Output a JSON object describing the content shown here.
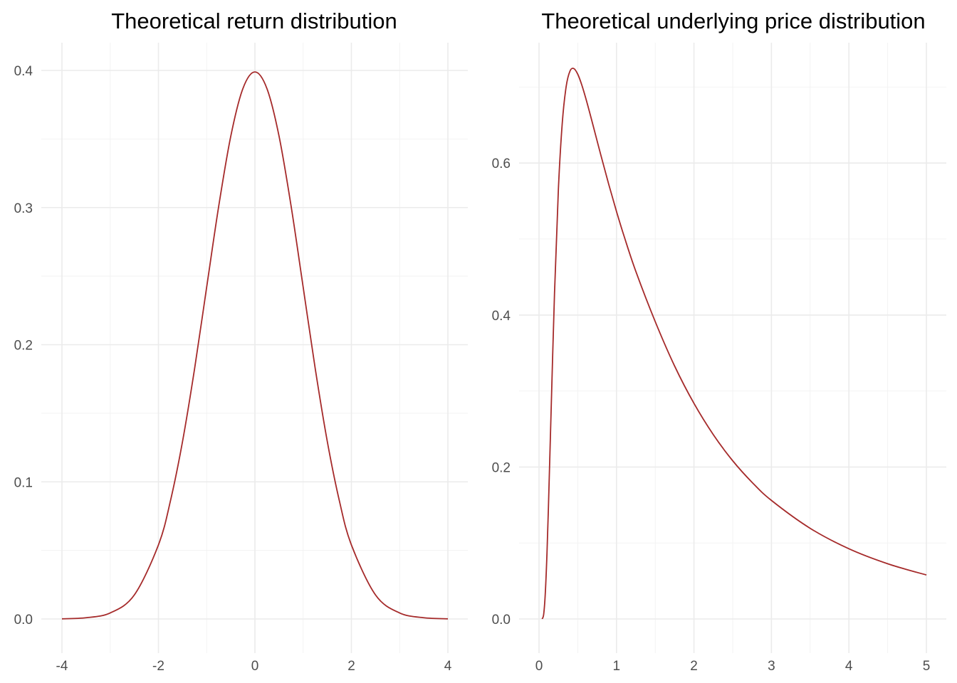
{
  "colors": {
    "line": "#a52a2a",
    "background": "#ffffff",
    "grid": "#ebebeb"
  },
  "chart_data": [
    {
      "type": "line",
      "title": "Theoretical return distribution",
      "xlabel": "",
      "ylabel": "",
      "xlim": [
        -4,
        4
      ],
      "ylim": [
        0,
        0.4
      ],
      "grid": true,
      "x_ticks": [
        -4,
        -2,
        0,
        2,
        4
      ],
      "x_tick_labels": [
        "-4",
        "-2",
        "0",
        "2",
        "4"
      ],
      "y_ticks": [
        0,
        0.1,
        0.2,
        0.3,
        0.4
      ],
      "y_tick_labels": [
        "0.0",
        "0.1",
        "0.2",
        "0.3",
        "0.4"
      ],
      "series": [
        {
          "x": [
            -4,
            -3.5,
            -3,
            -2.5,
            -2,
            -1.75,
            -1.5,
            -1.25,
            -1,
            -0.75,
            -0.5,
            -0.25,
            0,
            0.25,
            0.5,
            0.75,
            1,
            1.25,
            1.5,
            1.75,
            2,
            2.5,
            3,
            3.5,
            4
          ],
          "y": [
            0.0001,
            0.0009,
            0.0044,
            0.0175,
            0.054,
            0.0863,
            0.1295,
            0.1826,
            0.242,
            0.3011,
            0.3521,
            0.3867,
            0.3989,
            0.3867,
            0.3521,
            0.3011,
            0.242,
            0.1826,
            0.1295,
            0.0863,
            0.054,
            0.0175,
            0.0044,
            0.0009,
            0.0001
          ]
        }
      ]
    },
    {
      "type": "line",
      "title": "Theoretical underlying price distribution",
      "xlabel": "",
      "ylabel": "",
      "xlim": [
        0,
        5
      ],
      "ylim": [
        0,
        0.72
      ],
      "grid": true,
      "x_ticks": [
        0,
        1,
        2,
        3,
        4,
        5
      ],
      "x_tick_labels": [
        "0",
        "1",
        "2",
        "3",
        "4",
        "5"
      ],
      "y_ticks": [
        0,
        0.2,
        0.4,
        0.6
      ],
      "y_tick_labels": [
        "0.0",
        "0.2",
        "0.4",
        "0.6"
      ],
      "series": [
        {
          "x": [
            0.04,
            0.06,
            0.08,
            0.1,
            0.12,
            0.15,
            0.2,
            0.25,
            0.3,
            0.35,
            0.4,
            0.45,
            0.5,
            0.55,
            0.6,
            0.65,
            0.7,
            0.8,
            0.9,
            1,
            1.1,
            1.25,
            1.5,
            1.75,
            2,
            2.25,
            2.5,
            2.75,
            3,
            3.5,
            4,
            4.5,
            5
          ],
          "y": [
            0.0,
            0.0061,
            0.032,
            0.0788,
            0.1422,
            0.2515,
            0.4288,
            0.5657,
            0.6526,
            0.7004,
            0.7211,
            0.7243,
            0.7169,
            0.7034,
            0.6865,
            0.6679,
            0.6486,
            0.6097,
            0.5719,
            0.5363,
            0.5031,
            0.4573,
            0.3913,
            0.3329,
            0.2837,
            0.2425,
            0.2082,
            0.1798,
            0.156,
            0.1193,
            0.0924,
            0.0727,
            0.0579
          ]
        }
      ]
    }
  ]
}
